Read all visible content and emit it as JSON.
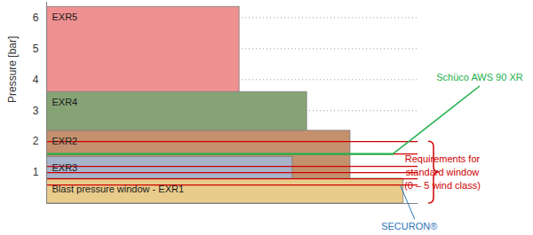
{
  "chart_data": {
    "type": "bar",
    "ylabel": "Pressure [bar]",
    "ylim": [
      0,
      6.5
    ],
    "yticks": [
      1,
      2,
      3,
      4,
      5,
      6
    ],
    "xlim": [
      0,
      77
    ],
    "tick_labels": "y",
    "grid": true,
    "series": [
      {
        "name": "EXR5",
        "color": "#ef9090",
        "values": [
          6.35
        ],
        "widths": [
          40
        ]
      },
      {
        "name": "EXR4",
        "color": "#86a375",
        "values": [
          3.6
        ],
        "widths": [
          54
        ]
      },
      {
        "name": "EXR2",
        "color": "#c4906e",
        "values": [
          2.35
        ],
        "widths": [
          63
        ]
      },
      {
        "name": "EXR3",
        "color": "#a6b4cc",
        "values": [
          1.5
        ],
        "widths": [
          51
        ]
      },
      {
        "name": "Blast pressure window - EXR1",
        "color": "#e9cc8c",
        "values": [
          0.8
        ],
        "widths": [
          74
        ]
      }
    ],
    "reference_lines": [
      {
        "label": [
          "Requirements for",
          "standard window",
          "(0 – 5 wind class)"
        ],
        "color": "#d00000",
        "values": [
          2.0,
          1.6,
          1.2,
          1.0,
          0.8,
          0.6
        ],
        "widths": [
          77,
          77,
          77,
          77,
          77,
          77
        ]
      },
      {
        "label": [
          "Schüco AWS 90 XR"
        ],
        "color": "#22b14c",
        "values": [
          1.6
        ],
        "widths": [
          72
        ]
      }
    ],
    "annotations": [
      {
        "text": "SECURON®",
        "color": "#2e75b6",
        "target": "Blast pressure window - EXR1"
      }
    ]
  }
}
